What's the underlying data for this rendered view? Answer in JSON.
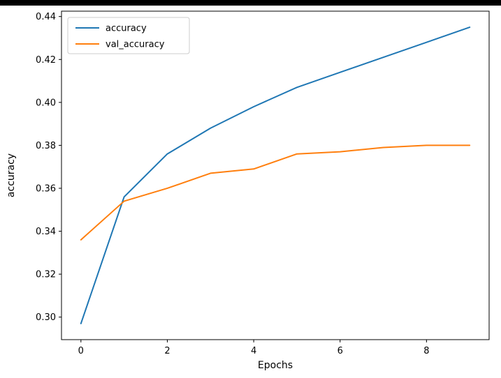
{
  "window": {
    "background": "#ffffff",
    "top_border_color": "#000000"
  },
  "chart_data": {
    "type": "line",
    "title": "",
    "xlabel": "Epochs",
    "ylabel": "accuracy",
    "x": [
      0,
      1,
      2,
      3,
      4,
      5,
      6,
      7,
      8,
      9
    ],
    "series": [
      {
        "name": "accuracy",
        "color": "#1f77b4",
        "values": [
          0.297,
          0.356,
          0.376,
          0.388,
          0.398,
          0.407,
          0.414,
          0.421,
          0.428,
          0.435
        ]
      },
      {
        "name": "val_accuracy",
        "color": "#ff7f0e",
        "values": [
          0.336,
          0.354,
          0.36,
          0.367,
          0.369,
          0.376,
          0.377,
          0.379,
          0.38,
          0.38
        ]
      }
    ],
    "xlim": [
      -0.45,
      9.45
    ],
    "ylim": [
      0.2895,
      0.4425
    ],
    "xticks": [
      0,
      2,
      4,
      6,
      8
    ],
    "yticks": [
      0.3,
      0.32,
      0.34,
      0.36,
      0.38,
      0.4,
      0.42,
      0.44
    ],
    "grid": false,
    "legend_position": "upper left",
    "legend_entries": [
      "accuracy",
      "val_accuracy"
    ],
    "axis_color": "#000000",
    "legend_border_color": "#cccccc"
  }
}
